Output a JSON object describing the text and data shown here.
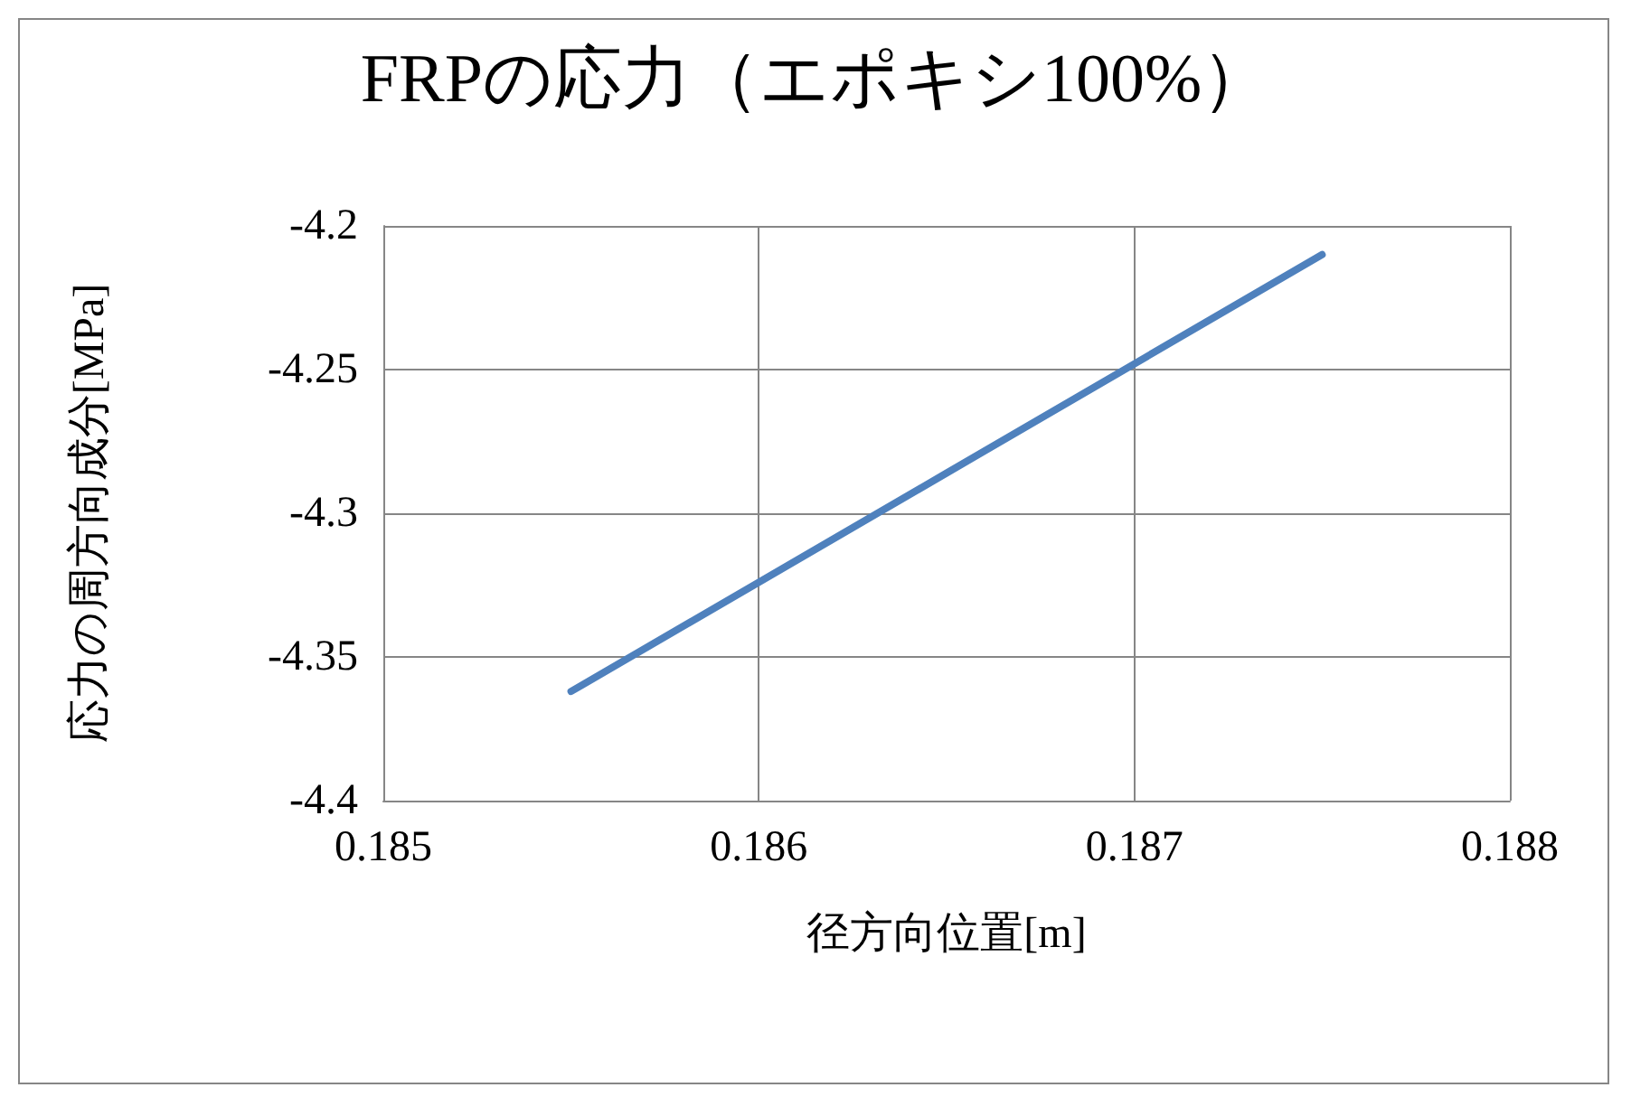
{
  "chart_data": {
    "type": "line",
    "title": "FRPの応力（エポキシ100%）",
    "xlabel": "径方向位置[m]",
    "ylabel": "応力の周方向成分[MPa]",
    "x": [
      0.1855,
      0.1865,
      0.1875
    ],
    "series": [
      {
        "color": "#4f81bd",
        "values": [
          -4.362,
          -4.286,
          -4.21
        ]
      }
    ],
    "xlim": [
      0.185,
      0.188
    ],
    "xticks": [
      0.185,
      0.186,
      0.187,
      0.188
    ],
    "ylim": [
      -4.4,
      -4.2
    ],
    "yticks": [
      -4.4,
      -4.35,
      -4.3,
      -4.25,
      -4.2
    ],
    "grid": true,
    "marker": "none",
    "line_style": "solid"
  }
}
